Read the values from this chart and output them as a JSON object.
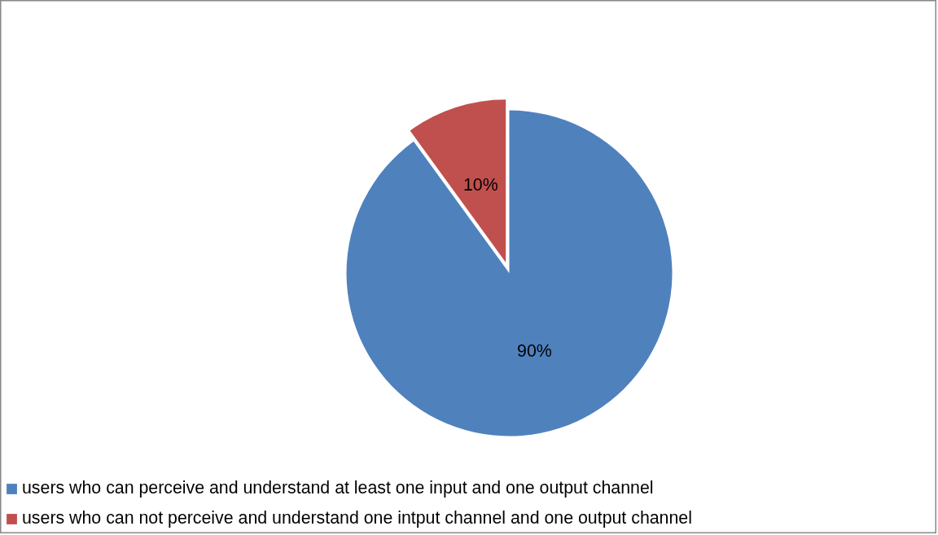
{
  "chart_data": {
    "type": "pie",
    "categories": [
      "users who can perceive and understand at least one input and one output channel",
      "users who can not perceive and understand one intput channel and one output channel"
    ],
    "values": [
      90,
      10
    ],
    "colors": [
      "#4f81bd",
      "#c0504d"
    ],
    "value_labels": [
      "90%",
      "10%"
    ],
    "legend": "bottom"
  }
}
